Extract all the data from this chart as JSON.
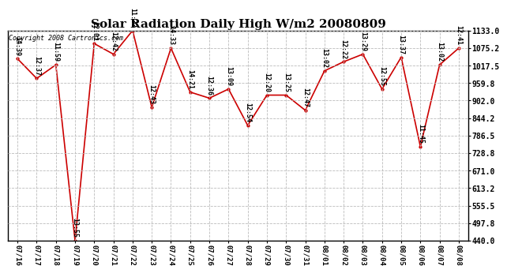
{
  "title": "Solar Radiation Daily High W/m2 20080809",
  "copyright": "Copyright 2008 Cartronics.com",
  "dates": [
    "07/16",
    "07/17",
    "07/18",
    "07/19",
    "07/20",
    "07/21",
    "07/22",
    "07/23",
    "07/24",
    "07/25",
    "07/26",
    "07/27",
    "07/28",
    "07/29",
    "07/30",
    "07/31",
    "08/01",
    "08/02",
    "08/03",
    "08/04",
    "08/05",
    "08/06",
    "08/07",
    "08/08"
  ],
  "values": [
    1040,
    975,
    1020,
    440,
    1090,
    1055,
    1133,
    880,
    1075,
    930,
    910,
    940,
    820,
    920,
    920,
    870,
    1000,
    1030,
    1055,
    940,
    1045,
    750,
    1020,
    1075
  ],
  "labels": [
    "14:39",
    "12:37",
    "11:59",
    "13:55",
    "12:01",
    "12:42",
    "11:33",
    "12:43",
    "14:33",
    "14:21",
    "12:36",
    "13:09",
    "12:54",
    "12:20",
    "13:25",
    "12:47",
    "13:02",
    "12:22",
    "13:29",
    "12:55",
    "13:37",
    "11:45",
    "13:02",
    "12:41"
  ],
  "line_color": "#cc0000",
  "marker_color": "#cc0000",
  "bg_color": "#ffffff",
  "plot_bg_color": "#ffffff",
  "grid_color": "#bbbbbb",
  "ylim_min": 440.0,
  "ylim_max": 1133.0,
  "yticks": [
    440.0,
    497.8,
    555.5,
    613.2,
    671.0,
    728.8,
    786.5,
    844.2,
    902.0,
    959.8,
    1017.5,
    1075.2,
    1133.0
  ],
  "title_fontsize": 11,
  "label_fontsize": 6,
  "tick_fontsize": 6.5,
  "copyright_fontsize": 6,
  "ytick_fontsize": 7
}
